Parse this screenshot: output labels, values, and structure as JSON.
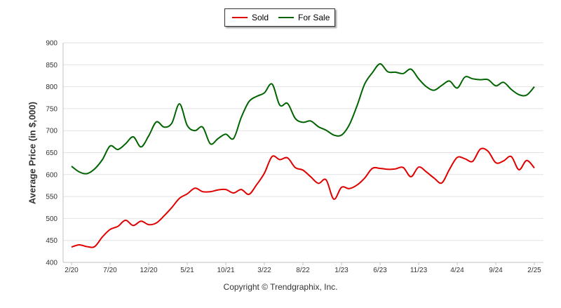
{
  "legend": {
    "sold_label": "Sold",
    "for_sale_label": "For Sale"
  },
  "copyright": "Copyright © Trendgraphix, Inc.",
  "chart_data": {
    "type": "line",
    "ylabel": "Average Price (in $,000)",
    "xlabel": "",
    "ylim": [
      400,
      900
    ],
    "yticks": [
      400,
      450,
      500,
      550,
      600,
      650,
      700,
      750,
      800,
      850,
      900
    ],
    "x_tick_labels": [
      "2/20",
      "7/20",
      "12/20",
      "5/21",
      "10/21",
      "3/22",
      "8/22",
      "1/23",
      "6/23",
      "11/23",
      "4/24",
      "9/24",
      "2/25"
    ],
    "grid": "horizontal",
    "legend_position": "top-center",
    "series": [
      {
        "name": "Sold",
        "color": "#e00000",
        "values": [
          435,
          440,
          436,
          436,
          458,
          475,
          482,
          496,
          484,
          494,
          486,
          490,
          506,
          525,
          546,
          556,
          569,
          561,
          561,
          565,
          566,
          558,
          566,
          555,
          577,
          603,
          641,
          634,
          638,
          616,
          610,
          595,
          580,
          588,
          544,
          571,
          568,
          576,
          592,
          614,
          614,
          612,
          613,
          616,
          595,
          617,
          606,
          592,
          581,
          612,
          639,
          636,
          630,
          658,
          653,
          627,
          631,
          641,
          611,
          632,
          615
        ],
        "values_annotation": "monthly 2/20 to 2/25"
      },
      {
        "name": "For Sale",
        "color": "#006400",
        "values": [
          619,
          606,
          602,
          613,
          634,
          665,
          657,
          670,
          686,
          663,
          688,
          720,
          708,
          717,
          761,
          712,
          700,
          708,
          670,
          682,
          692,
          682,
          730,
          766,
          778,
          786,
          806,
          758,
          762,
          728,
          719,
          722,
          709,
          701,
          690,
          690,
          713,
          756,
          806,
          832,
          852,
          834,
          833,
          830,
          840,
          818,
          800,
          792,
          803,
          813,
          797,
          822,
          818,
          816,
          816,
          802,
          810,
          794,
          782,
          781,
          800
        ],
        "values_annotation": "monthly 2/20 to 2/25"
      }
    ]
  }
}
